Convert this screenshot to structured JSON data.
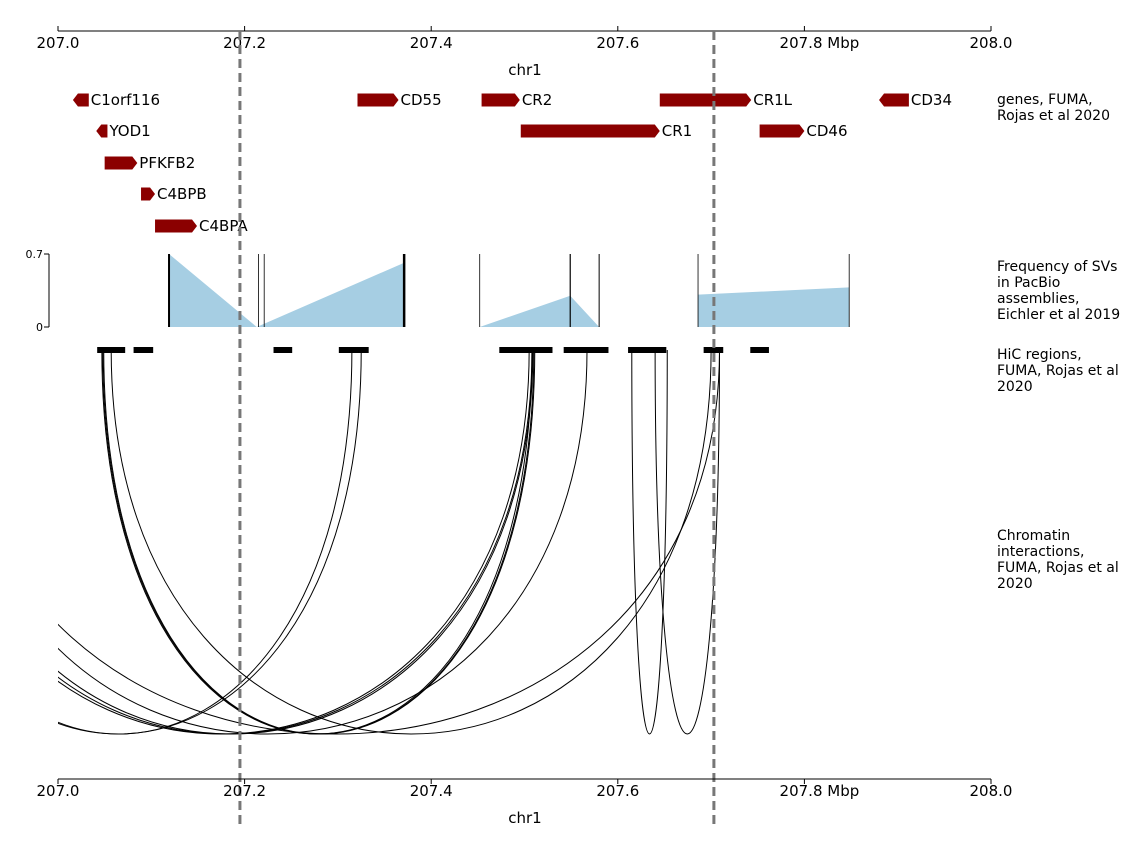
{
  "chart_data": {
    "type": "genome-tracks",
    "chromosome": "chr1",
    "unit": "Mbp",
    "xlim": [
      207.0,
      208.0
    ],
    "ticks": [
      {
        "value": 207.0,
        "label": "207.0"
      },
      {
        "value": 207.2,
        "label": "207.2"
      },
      {
        "value": 207.4,
        "label": "207.4"
      },
      {
        "value": 207.6,
        "label": "207.6"
      },
      {
        "value": 207.8,
        "label": "207.8  Mbp"
      },
      {
        "value": 208.0,
        "label": "208.0"
      }
    ],
    "region_markers": [
      207.195,
      207.703
    ],
    "tracks": {
      "genes": {
        "label": "genes, FUMA,\nRojas et al 2020",
        "color": "#8b0000",
        "items": [
          {
            "name": "C1orf116",
            "start": 207.016,
            "end": 207.033,
            "strand": "-",
            "row": 0
          },
          {
            "name": "YOD1",
            "start": 207.041,
            "end": 207.053,
            "strand": "-",
            "row": 1
          },
          {
            "name": "PFKFB2",
            "start": 207.05,
            "end": 207.085,
            "strand": "+",
            "row": 2
          },
          {
            "name": "C4BPB",
            "start": 207.089,
            "end": 207.104,
            "strand": "+",
            "row": 3
          },
          {
            "name": "C4BPA",
            "start": 207.104,
            "end": 207.149,
            "strand": "+",
            "row": 4
          },
          {
            "name": "CD55",
            "start": 207.321,
            "end": 207.365,
            "strand": "+",
            "row": 0
          },
          {
            "name": "CR2",
            "start": 207.454,
            "end": 207.495,
            "strand": "+",
            "row": 0
          },
          {
            "name": "CR1",
            "start": 207.496,
            "end": 207.645,
            "strand": "+",
            "row": 1
          },
          {
            "name": "CR1L",
            "start": 207.645,
            "end": 207.743,
            "strand": "+",
            "row": 0
          },
          {
            "name": "CD46",
            "start": 207.752,
            "end": 207.8,
            "strand": "+",
            "row": 1
          },
          {
            "name": "CD34",
            "start": 207.88,
            "end": 207.912,
            "strand": "-",
            "row": 0
          }
        ]
      },
      "sv_frequency": {
        "label": "Frequency of SVs\nin PacBio\nassemblies,\nEichler et al 2019",
        "ylim": [
          0,
          0.7
        ],
        "yticks": [
          {
            "value": 0,
            "label": "0"
          },
          {
            "value": 0.7,
            "label": "0.7"
          }
        ],
        "fill_color": "#a6cee3",
        "profile": [
          [
            207.119,
            0.7
          ],
          [
            207.213,
            0.0
          ],
          [
            207.372,
            0.62
          ],
          [
            207.372,
            0.0
          ],
          [
            207.452,
            0.0
          ],
          [
            207.549,
            0.3
          ],
          [
            207.58,
            0.0
          ],
          [
            207.686,
            0.0
          ],
          [
            207.686,
            0.31
          ],
          [
            207.848,
            0.38
          ],
          [
            207.848,
            0.0
          ]
        ],
        "markers": [
          {
            "x": 207.119,
            "height": 0.7,
            "weight": 2.0
          },
          {
            "x": 207.215,
            "height": 0.7,
            "weight": 0.8
          },
          {
            "x": 207.221,
            "height": 0.7,
            "weight": 0.8
          },
          {
            "x": 207.371,
            "height": 0.7,
            "weight": 2.5
          },
          {
            "x": 207.452,
            "height": 0.7,
            "weight": 0.8
          },
          {
            "x": 207.549,
            "height": 0.7,
            "weight": 1.2
          },
          {
            "x": 207.58,
            "height": 0.7,
            "weight": 1.0
          },
          {
            "x": 207.686,
            "height": 0.7,
            "weight": 0.8
          },
          {
            "x": 207.848,
            "height": 0.7,
            "weight": 0.8
          }
        ]
      },
      "hic_regions": {
        "label": "HiC regions,\nFUMA, Rojas et al\n2020",
        "segments": [
          {
            "start": 207.042,
            "end": 207.071
          },
          {
            "start": 207.051,
            "end": 207.072
          },
          {
            "start": 207.081,
            "end": 207.102
          },
          {
            "start": 207.231,
            "end": 207.251
          },
          {
            "start": 207.301,
            "end": 207.324
          },
          {
            "start": 207.312,
            "end": 207.333
          },
          {
            "start": 207.473,
            "end": 207.53
          },
          {
            "start": 207.493,
            "end": 207.513
          },
          {
            "start": 207.542,
            "end": 207.59
          },
          {
            "start": 207.611,
            "end": 207.652
          },
          {
            "start": 207.692,
            "end": 207.713
          },
          {
            "start": 207.742,
            "end": 207.762
          }
        ]
      },
      "chromatin_interactions": {
        "label": "Chromatin\ninteractions,\nFUMA, Rojas et al\n2020",
        "arcs": [
          {
            "a": 206.804,
            "b": 207.325
          },
          {
            "a": 206.815,
            "b": 207.315
          },
          {
            "a": 206.845,
            "b": 207.505
          },
          {
            "a": 206.852,
            "b": 207.508
          },
          {
            "a": 206.862,
            "b": 207.509
          },
          {
            "a": 206.882,
            "b": 207.567
          },
          {
            "a": 206.887,
            "b": 207.709
          },
          {
            "a": 207.047,
            "b": 207.508
          },
          {
            "a": 207.048,
            "b": 207.51
          },
          {
            "a": 207.049,
            "b": 207.511
          },
          {
            "a": 207.057,
            "b": 207.7
          },
          {
            "a": 207.615,
            "b": 207.653
          },
          {
            "a": 207.64,
            "b": 207.709
          }
        ]
      }
    }
  }
}
